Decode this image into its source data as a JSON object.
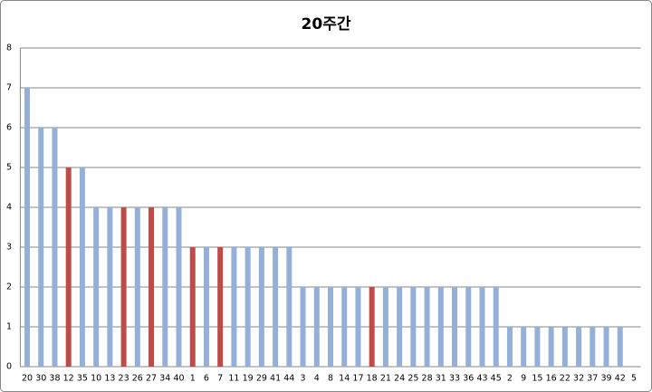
{
  "chart_data": {
    "type": "bar",
    "title": "20주간",
    "categories": [
      "20",
      "30",
      "38",
      "12",
      "35",
      "10",
      "13",
      "23",
      "26",
      "27",
      "34",
      "40",
      "1",
      "6",
      "7",
      "11",
      "19",
      "29",
      "41",
      "44",
      "3",
      "4",
      "8",
      "14",
      "17",
      "18",
      "21",
      "24",
      "25",
      "28",
      "31",
      "33",
      "36",
      "43",
      "45",
      "2",
      "9",
      "15",
      "16",
      "22",
      "32",
      "37",
      "39",
      "42",
      "5"
    ],
    "values": [
      7,
      6,
      6,
      5,
      5,
      4,
      4,
      4,
      4,
      4,
      4,
      4,
      3,
      3,
      3,
      3,
      3,
      3,
      3,
      3,
      2,
      2,
      2,
      2,
      2,
      2,
      2,
      2,
      2,
      2,
      2,
      2,
      2,
      2,
      2,
      1,
      1,
      1,
      1,
      1,
      1,
      1,
      1,
      1,
      0
    ],
    "colors": [
      "#95b0d8",
      "#95b0d8",
      "#95b0d8",
      "#be4b48",
      "#95b0d8",
      "#95b0d8",
      "#95b0d8",
      "#be4b48",
      "#95b0d8",
      "#be4b48",
      "#95b0d8",
      "#95b0d8",
      "#be4b48",
      "#95b0d8",
      "#be4b48",
      "#95b0d8",
      "#95b0d8",
      "#95b0d8",
      "#95b0d8",
      "#95b0d8",
      "#95b0d8",
      "#95b0d8",
      "#95b0d8",
      "#95b0d8",
      "#95b0d8",
      "#be4b48",
      "#95b0d8",
      "#95b0d8",
      "#95b0d8",
      "#95b0d8",
      "#95b0d8",
      "#95b0d8",
      "#95b0d8",
      "#95b0d8",
      "#95b0d8",
      "#95b0d8",
      "#95b0d8",
      "#95b0d8",
      "#95b0d8",
      "#95b0d8",
      "#95b0d8",
      "#95b0d8",
      "#95b0d8",
      "#95b0d8",
      "#95b0d8"
    ],
    "ylim": [
      0,
      8
    ],
    "yticks": [
      0,
      1,
      2,
      3,
      4,
      5,
      6,
      7,
      8
    ],
    "grid": true
  }
}
